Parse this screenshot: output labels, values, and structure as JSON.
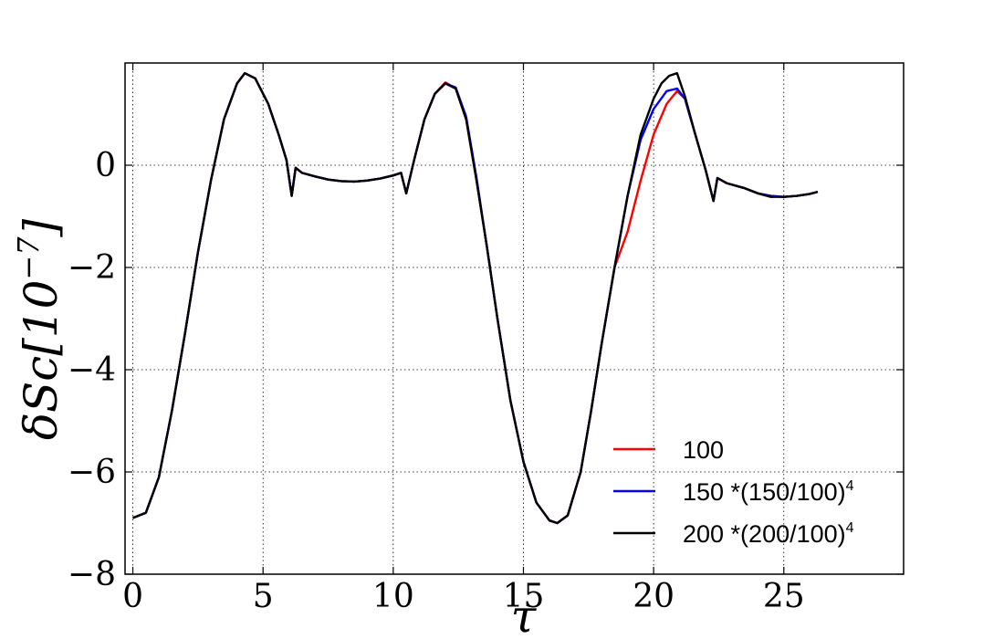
{
  "chart_data": {
    "type": "line",
    "xlabel": "τ",
    "ylabel_main": "δSc[10",
    "ylabel_exp": "−7",
    "ylabel_close": "]",
    "xlim": [
      -0.3,
      29.6
    ],
    "ylim": [
      -8,
      2.0
    ],
    "x_ticks": [
      0,
      5,
      10,
      15,
      20,
      25
    ],
    "y_ticks": [
      0,
      -2,
      -4,
      -6,
      -8
    ],
    "x_tick_labels": [
      "0",
      "5",
      "10",
      "15",
      "20",
      "25"
    ],
    "y_tick_labels": [
      "0",
      "−2",
      "−4",
      "−6",
      "−8"
    ],
    "grid": true,
    "legend_position": "lower-right",
    "series": [
      {
        "name": "100",
        "name_sup": "",
        "color": "#ff0000",
        "points": [
          [
            0,
            -6.9
          ],
          [
            0.5,
            -6.8
          ],
          [
            1,
            -6.1
          ],
          [
            1.5,
            -4.8
          ],
          [
            2,
            -3.3
          ],
          [
            2.5,
            -1.7
          ],
          [
            3,
            -0.3
          ],
          [
            3.5,
            0.9
          ],
          [
            4,
            1.6
          ],
          [
            4.3,
            1.8
          ],
          [
            4.7,
            1.7
          ],
          [
            5.2,
            1.2
          ],
          [
            5.6,
            0.6
          ],
          [
            5.9,
            0.1
          ],
          [
            6.1,
            -0.6
          ],
          [
            6.25,
            -0.05
          ],
          [
            6.5,
            -0.15
          ],
          [
            7,
            -0.22
          ],
          [
            7.5,
            -0.28
          ],
          [
            8,
            -0.31
          ],
          [
            8.5,
            -0.32
          ],
          [
            9,
            -0.3
          ],
          [
            9.5,
            -0.26
          ],
          [
            10,
            -0.2
          ],
          [
            10.3,
            -0.15
          ],
          [
            10.5,
            -0.55
          ],
          [
            10.8,
            0.1
          ],
          [
            11.2,
            0.9
          ],
          [
            11.6,
            1.4
          ],
          [
            12,
            1.62
          ],
          [
            12.4,
            1.5
          ],
          [
            12.8,
            0.9
          ],
          [
            13.2,
            -0.3
          ],
          [
            13.6,
            -1.6
          ],
          [
            14,
            -3.0
          ],
          [
            14.5,
            -4.6
          ],
          [
            15,
            -5.8
          ],
          [
            15.5,
            -6.6
          ],
          [
            16,
            -6.95
          ],
          [
            16.3,
            -7.0
          ],
          [
            16.7,
            -6.85
          ],
          [
            17.2,
            -6.0
          ],
          [
            17.6,
            -4.8
          ],
          [
            18,
            -3.5
          ],
          [
            18.5,
            -2.0
          ],
          [
            19,
            -1.3
          ],
          [
            19.5,
            -0.3
          ],
          [
            20,
            0.6
          ],
          [
            20.5,
            1.2
          ],
          [
            20.9,
            1.45
          ],
          [
            21.2,
            1.3
          ],
          [
            21.6,
            0.6
          ],
          [
            22,
            -0.1
          ],
          [
            22.3,
            -0.7
          ],
          [
            22.45,
            -0.25
          ],
          [
            22.8,
            -0.35
          ],
          [
            23.5,
            -0.45
          ],
          [
            24,
            -0.55
          ],
          [
            24.5,
            -0.6
          ],
          [
            25,
            -0.62
          ],
          [
            25.5,
            -0.6
          ],
          [
            26,
            -0.56
          ],
          [
            26.3,
            -0.52
          ]
        ]
      },
      {
        "name": "150 *(150/100)",
        "name_sup": "4",
        "color": "#0000ff",
        "points": [
          [
            0,
            -6.9
          ],
          [
            0.5,
            -6.8
          ],
          [
            1,
            -6.1
          ],
          [
            1.5,
            -4.8
          ],
          [
            2,
            -3.3
          ],
          [
            2.5,
            -1.7
          ],
          [
            3,
            -0.3
          ],
          [
            3.5,
            0.9
          ],
          [
            4,
            1.6
          ],
          [
            4.3,
            1.8
          ],
          [
            4.7,
            1.7
          ],
          [
            5.2,
            1.2
          ],
          [
            5.6,
            0.6
          ],
          [
            5.9,
            0.1
          ],
          [
            6.1,
            -0.6
          ],
          [
            6.25,
            -0.05
          ],
          [
            6.5,
            -0.15
          ],
          [
            7,
            -0.22
          ],
          [
            7.5,
            -0.28
          ],
          [
            8,
            -0.31
          ],
          [
            8.5,
            -0.32
          ],
          [
            9,
            -0.3
          ],
          [
            9.5,
            -0.26
          ],
          [
            10,
            -0.2
          ],
          [
            10.3,
            -0.15
          ],
          [
            10.5,
            -0.55
          ],
          [
            10.8,
            0.1
          ],
          [
            11.2,
            0.9
          ],
          [
            11.6,
            1.4
          ],
          [
            12,
            1.6
          ],
          [
            12.4,
            1.52
          ],
          [
            12.8,
            0.95
          ],
          [
            13.2,
            -0.25
          ],
          [
            13.6,
            -1.6
          ],
          [
            14,
            -3.0
          ],
          [
            14.5,
            -4.6
          ],
          [
            15,
            -5.8
          ],
          [
            15.5,
            -6.6
          ],
          [
            16,
            -6.95
          ],
          [
            16.3,
            -7.0
          ],
          [
            16.7,
            -6.85
          ],
          [
            17.2,
            -6.0
          ],
          [
            17.6,
            -4.8
          ],
          [
            18,
            -3.5
          ],
          [
            18.5,
            -2.0
          ],
          [
            19,
            -0.6
          ],
          [
            19.5,
            0.5
          ],
          [
            20,
            1.1
          ],
          [
            20.5,
            1.45
          ],
          [
            20.9,
            1.5
          ],
          [
            21.2,
            1.3
          ],
          [
            21.6,
            0.6
          ],
          [
            22,
            -0.1
          ],
          [
            22.3,
            -0.7
          ],
          [
            22.45,
            -0.25
          ],
          [
            22.8,
            -0.35
          ],
          [
            23.5,
            -0.45
          ],
          [
            24,
            -0.55
          ],
          [
            24.5,
            -0.6
          ],
          [
            25,
            -0.62
          ],
          [
            25.5,
            -0.6
          ],
          [
            26,
            -0.56
          ],
          [
            26.3,
            -0.52
          ]
        ]
      },
      {
        "name": "200 *(200/100)",
        "name_sup": "4",
        "color": "#000000",
        "points": [
          [
            0,
            -6.9
          ],
          [
            0.5,
            -6.8
          ],
          [
            1,
            -6.1
          ],
          [
            1.5,
            -4.8
          ],
          [
            2,
            -3.3
          ],
          [
            2.5,
            -1.7
          ],
          [
            3,
            -0.3
          ],
          [
            3.5,
            0.9
          ],
          [
            4,
            1.6
          ],
          [
            4.3,
            1.8
          ],
          [
            4.7,
            1.7
          ],
          [
            5.2,
            1.2
          ],
          [
            5.6,
            0.6
          ],
          [
            5.9,
            0.1
          ],
          [
            6.1,
            -0.6
          ],
          [
            6.25,
            -0.05
          ],
          [
            6.5,
            -0.15
          ],
          [
            7,
            -0.22
          ],
          [
            7.5,
            -0.28
          ],
          [
            8,
            -0.31
          ],
          [
            8.5,
            -0.32
          ],
          [
            9,
            -0.3
          ],
          [
            9.5,
            -0.26
          ],
          [
            10,
            -0.2
          ],
          [
            10.3,
            -0.15
          ],
          [
            10.5,
            -0.55
          ],
          [
            10.8,
            0.1
          ],
          [
            11.2,
            0.9
          ],
          [
            11.6,
            1.4
          ],
          [
            12,
            1.6
          ],
          [
            12.4,
            1.5
          ],
          [
            12.8,
            0.9
          ],
          [
            13.2,
            -0.3
          ],
          [
            13.6,
            -1.6
          ],
          [
            14,
            -3.0
          ],
          [
            14.5,
            -4.6
          ],
          [
            15,
            -5.8
          ],
          [
            15.5,
            -6.6
          ],
          [
            16,
            -6.95
          ],
          [
            16.3,
            -7.0
          ],
          [
            16.7,
            -6.85
          ],
          [
            17.2,
            -6.0
          ],
          [
            17.6,
            -4.8
          ],
          [
            18,
            -3.5
          ],
          [
            18.5,
            -2.0
          ],
          [
            19,
            -0.6
          ],
          [
            19.5,
            0.6
          ],
          [
            20,
            1.3
          ],
          [
            20.3,
            1.6
          ],
          [
            20.6,
            1.75
          ],
          [
            20.9,
            1.8
          ],
          [
            21.2,
            1.35
          ],
          [
            21.6,
            0.6
          ],
          [
            22,
            -0.1
          ],
          [
            22.3,
            -0.7
          ],
          [
            22.45,
            -0.25
          ],
          [
            22.8,
            -0.35
          ],
          [
            23.5,
            -0.45
          ],
          [
            24,
            -0.55
          ],
          [
            24.5,
            -0.62
          ],
          [
            25,
            -0.62
          ],
          [
            25.5,
            -0.6
          ],
          [
            26,
            -0.56
          ],
          [
            26.3,
            -0.52
          ]
        ]
      }
    ]
  }
}
